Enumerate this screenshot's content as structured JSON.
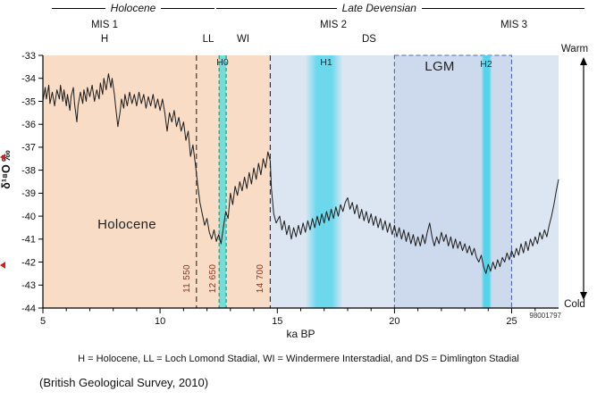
{
  "colors": {
    "peach": "#f8dcc6",
    "light_blue": "#dce6f3",
    "lgm_fill": "#cdd9ec",
    "lgm_border": "#4a66a8",
    "h0_fill": "#5fdcd8",
    "h0_edge": "#0ba095",
    "cyan": "#45d4ea",
    "line": "#1b1b1b",
    "boundary_label": "#8a3020"
  },
  "header": {
    "holocene_span": "Holocene",
    "late_devensian_span": "Late Devensian",
    "mis1": "MIS 1",
    "mis2": "MIS 2",
    "mis3": "MIS 3",
    "h": "H",
    "ll": "LL",
    "wi": "WI",
    "ds": "DS"
  },
  "axis": {
    "y_label": "δ¹⁸O ‰",
    "x_label": "ka BP",
    "warm": "Warm",
    "cold": "Cold"
  },
  "labels": {
    "holocene_region": "Holocene",
    "lgm": "LGM",
    "h0": "H0",
    "h1": "H1",
    "h2": "H2",
    "ref_number": "98001797"
  },
  "footer": {
    "legend": "H = Holocene, LL = Loch Lomond Stadial, WI = Windermere Interstadial, and DS = Dimlington Stadial",
    "citation": "(British Geological Survey, 2010)"
  },
  "chart_data": {
    "type": "line",
    "xlabel": "ka BP",
    "ylabel": "δ¹⁸O ‰",
    "xlim": [
      5,
      27
    ],
    "ylim": [
      -44,
      -33
    ],
    "x_ticks": [
      5,
      10,
      15,
      20,
      25
    ],
    "x_minor_step": 1,
    "y_ticks": [
      -33,
      -34,
      -35,
      -36,
      -37,
      -38,
      -39,
      -40,
      -41,
      -42,
      -43,
      -44
    ],
    "grid": false,
    "regions": [
      {
        "name": "holocene-region",
        "x0": 5,
        "x1": 14.7,
        "color": "peach"
      },
      {
        "name": "devensian-region",
        "x0": 14.7,
        "x1": 27,
        "color": "light_blue"
      },
      {
        "name": "h1-band",
        "x0": 16.2,
        "x1": 17.8,
        "gradient": "gradH1"
      },
      {
        "name": "lgm-box",
        "x0": 20,
        "x1": 25,
        "color": "lgm_fill",
        "dashed_border": true
      },
      {
        "name": "h2-band",
        "x0": 23.7,
        "x1": 24.15,
        "gradient": "gradH2"
      },
      {
        "name": "h0-band",
        "x0": 12.52,
        "x1": 12.82,
        "color": "h0_fill",
        "opacity": 0.85,
        "edge_color": "h0_edge"
      }
    ],
    "boundaries": [
      {
        "x": 11.55,
        "label": "11 550",
        "line_color": "#2b2b2b"
      },
      {
        "x": 12.65,
        "label": "12 650",
        "line_color": null
      },
      {
        "x": 14.7,
        "label": "14 700",
        "line_color": "#2b2b2b"
      }
    ],
    "events": [
      {
        "label": "H0",
        "x": 12.67
      },
      {
        "label": "H1",
        "x": 17.0
      },
      {
        "label": "H2",
        "x": 23.9
      }
    ],
    "series": [
      {
        "name": "δ¹⁸O",
        "points": [
          [
            5,
            -35
          ],
          [
            5.1,
            -34.4
          ],
          [
            5.15,
            -34.9
          ],
          [
            5.25,
            -34.3
          ],
          [
            5.3,
            -35.1
          ],
          [
            5.4,
            -34.6
          ],
          [
            5.5,
            -35.2
          ],
          [
            5.6,
            -34.5
          ],
          [
            5.7,
            -34.9
          ],
          [
            5.75,
            -34.3
          ],
          [
            5.85,
            -35
          ],
          [
            5.9,
            -34.5
          ],
          [
            6,
            -35.2
          ],
          [
            6.05,
            -34.7
          ],
          [
            6.15,
            -35.4
          ],
          [
            6.2,
            -34.8
          ],
          [
            6.3,
            -34.4
          ],
          [
            6.35,
            -35.1
          ],
          [
            6.45,
            -35.9
          ],
          [
            6.5,
            -35.2
          ],
          [
            6.6,
            -34.6
          ],
          [
            6.7,
            -35.1
          ],
          [
            6.75,
            -34.5
          ],
          [
            6.85,
            -35
          ],
          [
            6.9,
            -34.4
          ],
          [
            7,
            -34.8
          ],
          [
            7.1,
            -34.3
          ],
          [
            7.2,
            -35
          ],
          [
            7.3,
            -34.5
          ],
          [
            7.4,
            -34.9
          ],
          [
            7.45,
            -34.2
          ],
          [
            7.55,
            -34.7
          ],
          [
            7.6,
            -34
          ],
          [
            7.7,
            -34.5
          ],
          [
            7.8,
            -33.8
          ],
          [
            7.9,
            -34.4
          ],
          [
            7.95,
            -34
          ],
          [
            8.05,
            -34.7
          ],
          [
            8.1,
            -35.2
          ],
          [
            8.2,
            -36.1
          ],
          [
            8.3,
            -35.4
          ],
          [
            8.35,
            -34.9
          ],
          [
            8.45,
            -35.3
          ],
          [
            8.5,
            -34.7
          ],
          [
            8.6,
            -35.2
          ],
          [
            8.7,
            -34.6
          ],
          [
            8.8,
            -35.1
          ],
          [
            8.9,
            -34.7
          ],
          [
            9,
            -35.2
          ],
          [
            9.1,
            -34.6
          ],
          [
            9.2,
            -35.1
          ],
          [
            9.3,
            -34.7
          ],
          [
            9.4,
            -35.3
          ],
          [
            9.5,
            -34.8
          ],
          [
            9.6,
            -35.2
          ],
          [
            9.7,
            -34.7
          ],
          [
            9.8,
            -35.3
          ],
          [
            9.9,
            -34.9
          ],
          [
            10,
            -35.4
          ],
          [
            10.1,
            -34.9
          ],
          [
            10.2,
            -35.5
          ],
          [
            10.3,
            -36.3
          ],
          [
            10.4,
            -35.5
          ],
          [
            10.5,
            -35.9
          ],
          [
            10.6,
            -35.4
          ],
          [
            10.7,
            -36.1
          ],
          [
            10.8,
            -35.7
          ],
          [
            10.9,
            -36.3
          ],
          [
            11,
            -35.9
          ],
          [
            11.1,
            -36.7
          ],
          [
            11.2,
            -36.3
          ],
          [
            11.3,
            -37.4
          ],
          [
            11.4,
            -36.9
          ],
          [
            11.5,
            -37.7
          ],
          [
            11.6,
            -38.6
          ],
          [
            11.7,
            -39.4
          ],
          [
            11.8,
            -39.9
          ],
          [
            11.9,
            -40.4
          ],
          [
            12,
            -40.1
          ],
          [
            12.1,
            -40.7
          ],
          [
            12.2,
            -41
          ],
          [
            12.3,
            -40.6
          ],
          [
            12.4,
            -41.1
          ],
          [
            12.5,
            -40.8
          ],
          [
            12.6,
            -41.2
          ],
          [
            12.7,
            -40.5
          ],
          [
            12.8,
            -39.8
          ],
          [
            12.9,
            -40.1
          ],
          [
            13,
            -39
          ],
          [
            13.1,
            -39.5
          ],
          [
            13.2,
            -38.7
          ],
          [
            13.3,
            -39.1
          ],
          [
            13.4,
            -38.5
          ],
          [
            13.5,
            -38.9
          ],
          [
            13.6,
            -38.3
          ],
          [
            13.7,
            -38.8
          ],
          [
            13.8,
            -38.1
          ],
          [
            13.9,
            -38.6
          ],
          [
            14,
            -37.9
          ],
          [
            14.1,
            -38.4
          ],
          [
            14.2,
            -37.7
          ],
          [
            14.3,
            -38.2
          ],
          [
            14.4,
            -37.5
          ],
          [
            14.5,
            -37.9
          ],
          [
            14.6,
            -37.2
          ],
          [
            14.7,
            -37.6
          ],
          [
            14.75,
            -38.8
          ],
          [
            14.85,
            -39.9
          ],
          [
            14.95,
            -40.3
          ],
          [
            15.1,
            -40
          ],
          [
            15.2,
            -40.6
          ],
          [
            15.3,
            -40.2
          ],
          [
            15.4,
            -40.8
          ],
          [
            15.5,
            -40.4
          ],
          [
            15.6,
            -41
          ],
          [
            15.7,
            -40.5
          ],
          [
            15.8,
            -40.9
          ],
          [
            15.9,
            -40.4
          ],
          [
            16,
            -40.8
          ],
          [
            16.1,
            -40.3
          ],
          [
            16.2,
            -40.7
          ],
          [
            16.3,
            -40.2
          ],
          [
            16.4,
            -40.6
          ],
          [
            16.5,
            -40.1
          ],
          [
            16.6,
            -40.5
          ],
          [
            16.7,
            -40
          ],
          [
            16.8,
            -40.4
          ],
          [
            16.9,
            -39.9
          ],
          [
            17,
            -40.3
          ],
          [
            17.1,
            -39.8
          ],
          [
            17.2,
            -40.2
          ],
          [
            17.3,
            -39.7
          ],
          [
            17.4,
            -40.1
          ],
          [
            17.5,
            -39.6
          ],
          [
            17.6,
            -40
          ],
          [
            17.7,
            -39.5
          ],
          [
            17.8,
            -39.8
          ],
          [
            17.9,
            -39.4
          ],
          [
            18,
            -39.2
          ],
          [
            18.1,
            -39.7
          ],
          [
            18.2,
            -39.4
          ],
          [
            18.3,
            -39.9
          ],
          [
            18.4,
            -39.5
          ],
          [
            18.5,
            -40.1
          ],
          [
            18.6,
            -39.7
          ],
          [
            18.7,
            -40.2
          ],
          [
            18.8,
            -39.8
          ],
          [
            18.9,
            -40.3
          ],
          [
            19,
            -39.9
          ],
          [
            19.1,
            -40.4
          ],
          [
            19.2,
            -40
          ],
          [
            19.3,
            -40.5
          ],
          [
            19.4,
            -40.1
          ],
          [
            19.5,
            -40.6
          ],
          [
            19.6,
            -40.2
          ],
          [
            19.7,
            -40.7
          ],
          [
            19.8,
            -40.3
          ],
          [
            19.9,
            -40.8
          ],
          [
            20,
            -40.4
          ],
          [
            20.1,
            -40.9
          ],
          [
            20.2,
            -40.5
          ],
          [
            20.3,
            -41
          ],
          [
            20.4,
            -40.6
          ],
          [
            20.5,
            -41.1
          ],
          [
            20.6,
            -40.7
          ],
          [
            20.7,
            -41.2
          ],
          [
            20.8,
            -40.8
          ],
          [
            20.9,
            -41.3
          ],
          [
            21,
            -40.9
          ],
          [
            21.1,
            -41.3
          ],
          [
            21.2,
            -40.8
          ],
          [
            21.3,
            -41.2
          ],
          [
            21.4,
            -40.7
          ],
          [
            21.5,
            -40.3
          ],
          [
            21.6,
            -40.9
          ],
          [
            21.7,
            -41.3
          ],
          [
            21.8,
            -40.9
          ],
          [
            21.9,
            -41.2
          ],
          [
            22,
            -40.7
          ],
          [
            22.1,
            -41.1
          ],
          [
            22.2,
            -40.8
          ],
          [
            22.3,
            -41.3
          ],
          [
            22.4,
            -40.9
          ],
          [
            22.5,
            -41.4
          ],
          [
            22.6,
            -41
          ],
          [
            22.7,
            -41.4
          ],
          [
            22.8,
            -41.1
          ],
          [
            22.9,
            -41.5
          ],
          [
            23,
            -41.2
          ],
          [
            23.1,
            -41.6
          ],
          [
            23.2,
            -41.3
          ],
          [
            23.3,
            -41.7
          ],
          [
            23.4,
            -41.4
          ],
          [
            23.5,
            -41.8
          ],
          [
            23.6,
            -42
          ],
          [
            23.7,
            -41.7
          ],
          [
            23.8,
            -42.2
          ],
          [
            23.9,
            -42.5
          ],
          [
            24,
            -42.1
          ],
          [
            24.1,
            -42.4
          ],
          [
            24.2,
            -42
          ],
          [
            24.3,
            -42.3
          ],
          [
            24.4,
            -41.9
          ],
          [
            24.5,
            -42.2
          ],
          [
            24.6,
            -41.8
          ],
          [
            24.7,
            -42
          ],
          [
            24.8,
            -41.6
          ],
          [
            24.9,
            -41.9
          ],
          [
            25,
            -41.5
          ],
          [
            25.1,
            -41.8
          ],
          [
            25.2,
            -41.4
          ],
          [
            25.3,
            -41.7
          ],
          [
            25.4,
            -41.2
          ],
          [
            25.5,
            -41.6
          ],
          [
            25.6,
            -41.1
          ],
          [
            25.7,
            -41.5
          ],
          [
            25.8,
            -41
          ],
          [
            25.9,
            -41.3
          ],
          [
            26,
            -40.9
          ],
          [
            26.1,
            -41.2
          ],
          [
            26.2,
            -40.7
          ],
          [
            26.3,
            -41
          ],
          [
            26.4,
            -40.6
          ],
          [
            26.5,
            -40.9
          ],
          [
            26.6,
            -40.4
          ],
          [
            26.7,
            -40
          ],
          [
            26.8,
            -39.5
          ],
          [
            26.9,
            -38.9
          ],
          [
            27,
            -38.4
          ]
        ]
      }
    ]
  }
}
